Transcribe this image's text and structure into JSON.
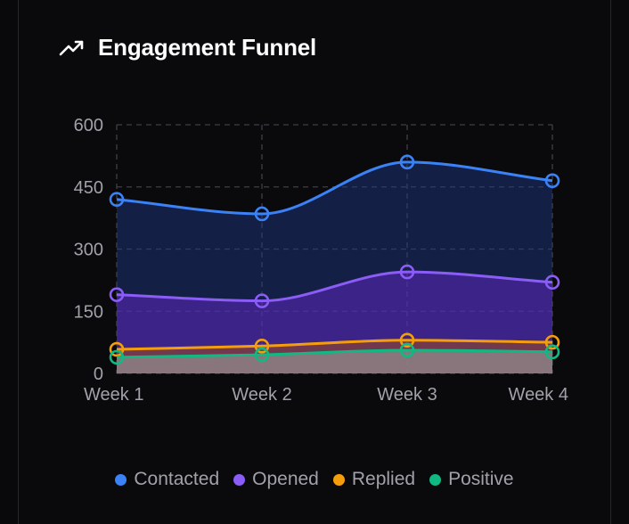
{
  "title": "Engagement Funnel",
  "title_icon": "trending-up-icon",
  "chart_data": {
    "type": "area",
    "categories": [
      "Week 1",
      "Week 2",
      "Week 3",
      "Week 4"
    ],
    "ylim": [
      0,
      600
    ],
    "yticks": [
      0,
      150,
      300,
      450,
      600
    ],
    "grid": true,
    "legend_position": "bottom",
    "series": [
      {
        "name": "Contacted",
        "color": "#3b82f6",
        "fill": "#1e3a8a",
        "values": [
          420,
          385,
          510,
          465
        ]
      },
      {
        "name": "Opened",
        "color": "#8b5cf6",
        "fill": "#6d28d9",
        "values": [
          190,
          175,
          245,
          220
        ]
      },
      {
        "name": "Replied",
        "color": "#f59e0b",
        "fill": "#b45309",
        "values": [
          58,
          66,
          80,
          75
        ]
      },
      {
        "name": "Positive",
        "color": "#10b981",
        "fill": "#a7c4b5",
        "values": [
          39,
          45,
          56,
          52
        ]
      }
    ]
  }
}
